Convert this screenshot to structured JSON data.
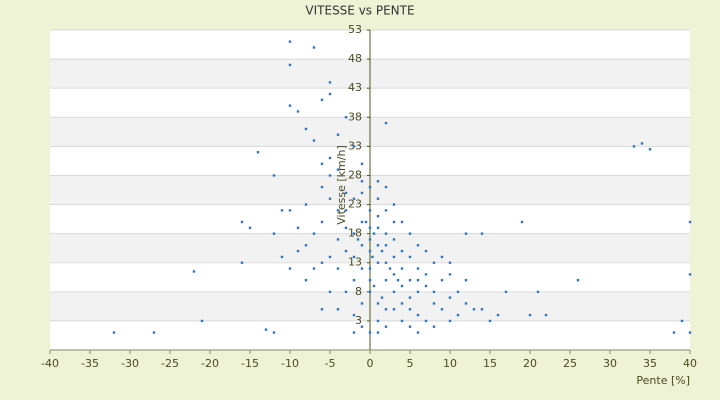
{
  "chart_data": {
    "type": "scatter",
    "title": "VITESSE vs PENTE",
    "x_label": "Pente [%]",
    "y_label": "Vitesse [km/h]",
    "x": [
      -10,
      -10,
      -7,
      -10,
      -9,
      -5,
      -5,
      -6,
      -14,
      -12,
      -16,
      -15,
      -16,
      -22,
      -32,
      -27,
      -21,
      -12,
      -13,
      2,
      33,
      34,
      35,
      26,
      19,
      40,
      40,
      40,
      38,
      39,
      20,
      21,
      15,
      17,
      14,
      12,
      22,
      -8,
      -7,
      -6,
      -5,
      -4,
      -3,
      -2,
      -1,
      -1,
      0,
      1,
      2,
      3,
      -3,
      -4,
      -5,
      -6,
      -7,
      -8,
      -9,
      -10,
      -11,
      -12,
      -8,
      -6,
      -5,
      -4,
      -3,
      -2,
      -1,
      0,
      1,
      2,
      3,
      4,
      5,
      6,
      7,
      8,
      9,
      10,
      11,
      12,
      13,
      3,
      4,
      5,
      6,
      7,
      2,
      1,
      0,
      -1,
      -2,
      -3,
      -4,
      -2,
      -1,
      0,
      1,
      0,
      0,
      0,
      0,
      0,
      1,
      1,
      2,
      2,
      3,
      3,
      4,
      4,
      5,
      5,
      6,
      6,
      7,
      8,
      8,
      9,
      10,
      11,
      -1,
      -2,
      -3,
      -4,
      -5,
      -6,
      -7,
      -8,
      -9,
      -10,
      -11,
      -6,
      -5,
      -4,
      -3,
      -2,
      -1,
      1,
      2,
      3,
      4,
      5,
      6,
      7,
      9,
      10,
      12,
      14,
      16,
      -1,
      1,
      2,
      3,
      4,
      5,
      6,
      -2,
      1,
      2,
      8,
      10,
      0.5,
      1.5,
      2.5,
      -0.5,
      0.5,
      1.5,
      3.5,
      -1.5,
      0.3
    ],
    "values": [
      51,
      47,
      50,
      40,
      39,
      44,
      42,
      41,
      32,
      28,
      13,
      19,
      20,
      11.5,
      1,
      1,
      3,
      1,
      1.5,
      37,
      33,
      33.5,
      32.5,
      10,
      20,
      20,
      11,
      1,
      1,
      3,
      4,
      8,
      3,
      8,
      18,
      18,
      4,
      36,
      34,
      30,
      28,
      35,
      38,
      33,
      30,
      27,
      26,
      24,
      22,
      20,
      25,
      22,
      24,
      20,
      18,
      23,
      15,
      12,
      22,
      18,
      10,
      5,
      8,
      12,
      15,
      18,
      20,
      22,
      19,
      16,
      14,
      12,
      10,
      8,
      9,
      6,
      5,
      7,
      4,
      6,
      5,
      8,
      6,
      5,
      4,
      3,
      10,
      13,
      15,
      12,
      10,
      8,
      5,
      4,
      2,
      1,
      3,
      8,
      10,
      12,
      17,
      19,
      16,
      21,
      18,
      13,
      17,
      11,
      15,
      9,
      14,
      7,
      12,
      10,
      11,
      13,
      8,
      10,
      11,
      8,
      16,
      14,
      19,
      17,
      14,
      13,
      12,
      16,
      19,
      22,
      14,
      26,
      31,
      29,
      22,
      24,
      25,
      27,
      26,
      23,
      20,
      18,
      16,
      15,
      14,
      13,
      10,
      5,
      4,
      6,
      6,
      5,
      5,
      3,
      2,
      1,
      1,
      1,
      2,
      2,
      3,
      18,
      15,
      12,
      20,
      9,
      7,
      10,
      17,
      14
    ],
    "color": "#2e75c8",
    "xlim": [
      -40,
      40
    ],
    "xticks": [
      -40,
      -35,
      -30,
      -25,
      -20,
      -15,
      -10,
      -5,
      0,
      5,
      10,
      15,
      20,
      25,
      30,
      35,
      40
    ],
    "ylim": [
      -2,
      53
    ],
    "yticks": [
      3,
      8,
      13,
      18,
      23,
      28,
      33,
      38,
      43,
      48,
      53
    ],
    "grid": true
  }
}
